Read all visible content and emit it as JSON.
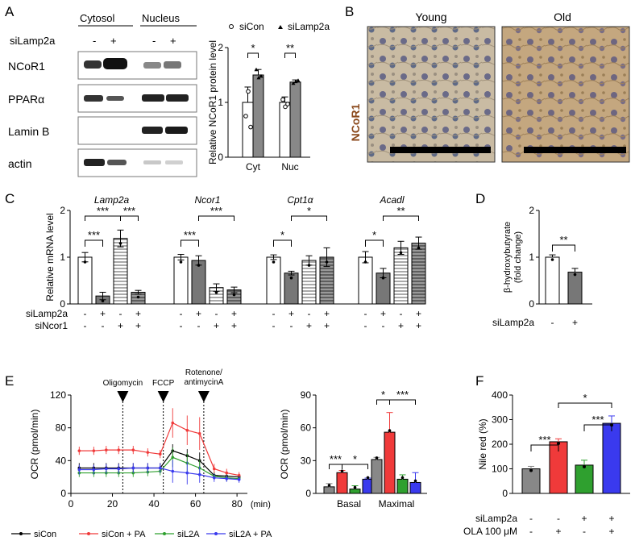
{
  "panel_letters": [
    "A",
    "B",
    "C",
    "D",
    "E",
    "F"
  ],
  "colors": {
    "red": "#f03a3a",
    "green": "#2fa02f",
    "blue": "#3a3aee",
    "grey": "#888888",
    "black": "#000000",
    "stain": "#8b4a1c"
  },
  "panelA": {
    "blot_headers": [
      "Cytosol",
      "Nucleus"
    ],
    "sirna_label": "siLamp2a",
    "lane_signs": [
      "-",
      "+",
      "-",
      "+"
    ],
    "blot_rows": [
      "NCoR1",
      "PPARα",
      "Lamin B",
      "actin"
    ]
  },
  "panelB": {
    "columns": [
      "Young",
      "Old"
    ],
    "stain_label": "NCoR1"
  },
  "chart_data": [
    {
      "panel": "A",
      "type": "bar",
      "title": "",
      "legend": [
        "siCon",
        "siLamp2a"
      ],
      "ylabel": "Relative NCoR1 protein level",
      "xlabel": "",
      "categories": [
        "Cyt",
        "Nuc"
      ],
      "ylim": [
        0,
        2
      ],
      "yticks": [
        "0",
        "1",
        "2"
      ],
      "series": [
        {
          "name": "siCon",
          "values": [
            1.0,
            1.0
          ],
          "errors": [
            0.28,
            0.1
          ],
          "points": [
            [
              0.75,
              1.2,
              0.55
            ],
            [
              1.05,
              0.92,
              0.97
            ]
          ]
        },
        {
          "name": "siLamp2a",
          "values": [
            1.5,
            1.37
          ],
          "errors": [
            0.1,
            0.04
          ],
          "points": [
            [
              1.6,
              1.45,
              1.48
            ],
            [
              1.35,
              1.38,
              1.4
            ]
          ]
        }
      ],
      "significance": [
        "*",
        "**"
      ]
    },
    {
      "panel": "C",
      "type": "bar",
      "ylabel": "Relative mRNA level",
      "ylim": [
        0,
        2
      ],
      "yticks": [
        "0",
        "1",
        "2"
      ],
      "row_labels": [
        "siLamp2a",
        "siNcor1"
      ],
      "conditions": [
        [
          "-",
          "-"
        ],
        [
          "+",
          "-"
        ],
        [
          "-",
          "+"
        ],
        [
          "+",
          "+"
        ]
      ],
      "groups": [
        {
          "gene": "Lamp2a",
          "values": [
            1.0,
            0.17,
            1.4,
            0.25
          ],
          "errors": [
            0.1,
            0.08,
            0.18,
            0.04
          ],
          "significance": [
            "***",
            "***",
            "***"
          ]
        },
        {
          "gene": "Ncor1",
          "values": [
            1.0,
            0.93,
            0.35,
            0.3
          ],
          "errors": [
            0.06,
            0.1,
            0.08,
            0.06
          ],
          "significance": [
            "***",
            "***"
          ]
        },
        {
          "gene": "Cpt1α",
          "values": [
            1.0,
            0.66,
            0.93,
            1.0
          ],
          "errors": [
            0.05,
            0.04,
            0.1,
            0.2
          ],
          "significance": [
            "*",
            "*"
          ]
        },
        {
          "gene": "Acadl",
          "values": [
            1.0,
            0.66,
            1.2,
            1.3
          ],
          "errors": [
            0.12,
            0.1,
            0.14,
            0.13
          ],
          "significance": [
            "*",
            "**"
          ]
        }
      ]
    },
    {
      "panel": "D",
      "type": "bar",
      "ylabel": "β-hydroxybutyrate (fold change)",
      "ylim": [
        0,
        2
      ],
      "yticks": [
        "0",
        "1",
        "2"
      ],
      "xlabel_row": "siLamp2a",
      "conditions": [
        "-",
        "+"
      ],
      "values": [
        1.0,
        0.68
      ],
      "errors": [
        0.05,
        0.08
      ],
      "significance": "**"
    },
    {
      "panel": "E-left",
      "type": "line",
      "ylabel": "OCR (pmol/min)",
      "xlabel": "(min)",
      "xlim": [
        0,
        85
      ],
      "xticks": [
        "0",
        "20",
        "40",
        "60",
        "80"
      ],
      "ylim": [
        0,
        120
      ],
      "yticks": [
        "0",
        "40",
        "80",
        "120"
      ],
      "injections": [
        {
          "label": "Oligomycin",
          "x": 25
        },
        {
          "label": "FCCP",
          "x": 44.5
        },
        {
          "label": "Rotenone/\nantimycinA",
          "x": 64
        }
      ],
      "x": [
        4,
        11,
        17,
        23,
        30,
        37,
        43,
        49,
        56,
        62,
        69,
        75,
        81
      ],
      "series": [
        {
          "name": "siCon",
          "color": "#000000",
          "values": [
            31,
            31,
            31,
            31,
            31,
            31,
            31,
            52,
            46,
            40,
            22,
            21,
            20
          ],
          "errors": [
            6,
            6,
            6,
            6,
            6,
            6,
            6,
            8,
            8,
            10,
            4,
            4,
            4
          ]
        },
        {
          "name": "siCon + PA",
          "color": "#f03a3a",
          "values": [
            52,
            52,
            53,
            53,
            53,
            50,
            48,
            86,
            77,
            73,
            30,
            25,
            22
          ],
          "errors": [
            5,
            5,
            5,
            5,
            5,
            5,
            5,
            18,
            18,
            20,
            6,
            5,
            4
          ]
        },
        {
          "name": "siL2A",
          "color": "#2fa02f",
          "values": [
            25,
            25,
            25,
            25,
            25,
            26,
            27,
            44,
            37,
            31,
            21,
            19,
            18
          ],
          "errors": [
            5,
            5,
            5,
            5,
            5,
            5,
            5,
            12,
            12,
            10,
            4,
            4,
            3
          ]
        },
        {
          "name": "siL2A + PA",
          "color": "#3a3aee",
          "values": [
            29,
            29,
            30,
            30,
            31,
            31,
            31,
            27,
            25,
            23,
            19,
            18,
            17
          ],
          "errors": [
            6,
            6,
            6,
            6,
            6,
            6,
            6,
            14,
            14,
            10,
            5,
            4,
            4
          ]
        }
      ]
    },
    {
      "panel": "E-right",
      "type": "bar",
      "ylabel": "OCR (pmol/min)",
      "ylim": [
        0,
        90
      ],
      "yticks": [
        "0",
        "30",
        "60",
        "90"
      ],
      "categories": [
        "Basal",
        "Maximal"
      ],
      "series": [
        {
          "name": "siCon",
          "color": "#888888",
          "values": [
            6,
            31
          ],
          "errors": [
            3,
            2
          ]
        },
        {
          "name": "siCon + PA",
          "color": "#f03a3a",
          "values": [
            19,
            56
          ],
          "errors": [
            2,
            18
          ]
        },
        {
          "name": "siL2A",
          "color": "#2fa02f",
          "values": [
            4,
            13
          ],
          "errors": [
            3,
            4
          ]
        },
        {
          "name": "siL2A + PA",
          "color": "#3a3aee",
          "values": [
            13,
            10
          ],
          "errors": [
            1,
            9
          ]
        }
      ],
      "significance": [
        "***",
        "*",
        "*",
        "***"
      ]
    },
    {
      "panel": "F",
      "type": "bar",
      "ylabel": "Nile red (%)",
      "ylim": [
        0,
        400
      ],
      "yticks": [
        "0",
        "100",
        "200",
        "300",
        "400"
      ],
      "row_labels": [
        "siLamp2a",
        "OLA 100 μM"
      ],
      "conditions": [
        [
          "-",
          "-"
        ],
        [
          "-",
          "+"
        ],
        [
          "+",
          "-"
        ],
        [
          "+",
          "+"
        ]
      ],
      "colors": [
        "#888888",
        "#f03a3a",
        "#2fa02f",
        "#3a3aee"
      ],
      "values": [
        100,
        210,
        115,
        285
      ],
      "errors": [
        10,
        12,
        20,
        30
      ],
      "significance": [
        "***",
        "*",
        "***"
      ]
    }
  ],
  "legendE": [
    "siCon",
    "siCon + PA",
    "siL2A",
    "siL2A + PA"
  ]
}
